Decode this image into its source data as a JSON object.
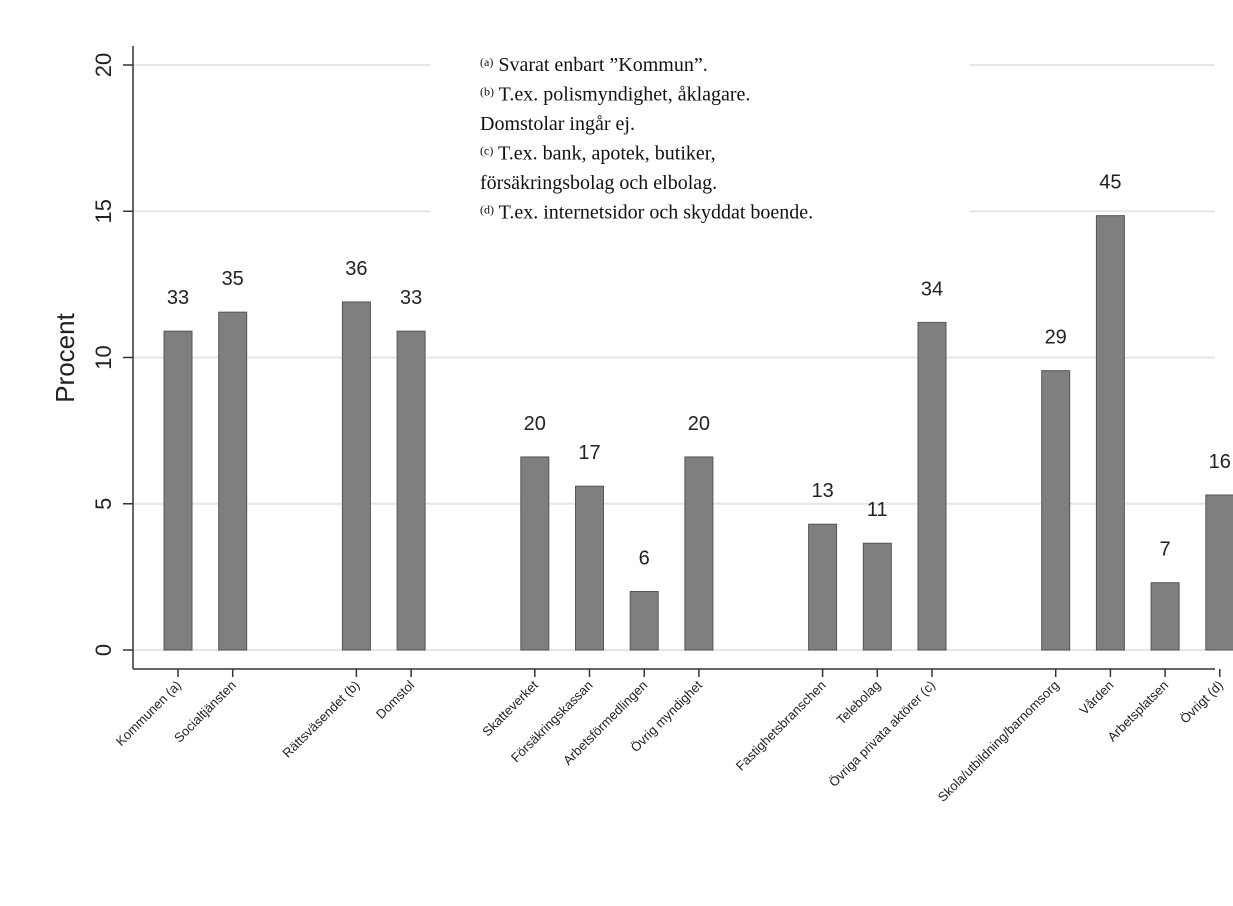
{
  "chart_data": {
    "type": "bar",
    "ylabel": "Procent",
    "ylim": [
      0,
      20
    ],
    "yticks": [
      0,
      5,
      10,
      15,
      20
    ],
    "grid": true,
    "bar_color": "#7f7f7f",
    "categories": [
      "Kommunen (a)",
      "Socialtjänsten",
      "Rättsväsendet (b)",
      "Domstol",
      "Skatteverket",
      "Försäkringskassan",
      "Arbetsförmedlingen",
      "Övrig myndighet",
      "Fastighetsbranschen",
      "Telebolag",
      "Övriga privata aktörer (c)",
      "Skola/utbildning/barnomsorg",
      "Vården",
      "Arbetsplatsen",
      "Övrigt (d)"
    ],
    "groups": [
      2,
      2,
      4,
      3,
      4
    ],
    "values": [
      10.9,
      11.55,
      11.9,
      10.9,
      6.6,
      5.6,
      2.0,
      6.6,
      4.3,
      3.65,
      11.2,
      9.55,
      14.85,
      2.3,
      5.3
    ],
    "data_labels": [
      "33",
      "35",
      "36",
      "33",
      "20",
      "17",
      "6",
      "20",
      "13",
      "11",
      "34",
      "29",
      "45",
      "7",
      "16"
    ],
    "notes": [
      {
        "sup": "(a)",
        "text": " Svarat enbart ”Kommun”."
      },
      {
        "sup": "(b)",
        "text": " T.ex. polismyndighet, åklagare."
      },
      {
        "sup": "",
        "text": "Domstolar ingår ej."
      },
      {
        "sup": "(c)",
        "text": " T.ex. bank, apotek, butiker,"
      },
      {
        "sup": "",
        "text": "försäkringsbolag och elbolag."
      },
      {
        "sup": "(d)",
        "text": " T.ex. internetsidor och skyddat boende."
      }
    ]
  }
}
